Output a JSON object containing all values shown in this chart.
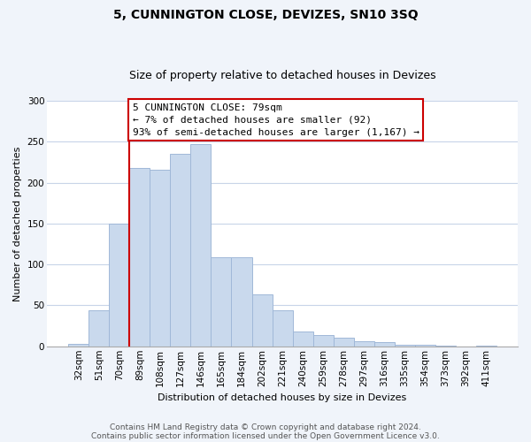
{
  "title": "5, CUNNINGTON CLOSE, DEVIZES, SN10 3SQ",
  "subtitle": "Size of property relative to detached houses in Devizes",
  "xlabel": "Distribution of detached houses by size in Devizes",
  "ylabel": "Number of detached properties",
  "bar_labels": [
    "32sqm",
    "51sqm",
    "70sqm",
    "89sqm",
    "108sqm",
    "127sqm",
    "146sqm",
    "165sqm",
    "184sqm",
    "202sqm",
    "221sqm",
    "240sqm",
    "259sqm",
    "278sqm",
    "297sqm",
    "316sqm",
    "335sqm",
    "354sqm",
    "373sqm",
    "392sqm",
    "411sqm"
  ],
  "bar_values": [
    3,
    44,
    150,
    218,
    216,
    235,
    247,
    109,
    109,
    63,
    44,
    18,
    14,
    11,
    6,
    5,
    2,
    2,
    1,
    0,
    1
  ],
  "bar_color": "#c9d9ed",
  "bar_edge_color": "#a0b8d8",
  "vline_x_index": 2,
  "vline_color": "#cc0000",
  "annotation_line1": "5 CUNNINGTON CLOSE: 79sqm",
  "annotation_line2": "← 7% of detached houses are smaller (92)",
  "annotation_line3": "93% of semi-detached houses are larger (1,167) →",
  "annotation_box_edge": "#cc0000",
  "ylim": [
    0,
    300
  ],
  "yticks": [
    0,
    50,
    100,
    150,
    200,
    250,
    300
  ],
  "footer_line1": "Contains HM Land Registry data © Crown copyright and database right 2024.",
  "footer_line2": "Contains public sector information licensed under the Open Government Licence v3.0.",
  "bg_color": "#f0f4fa",
  "plot_bg_color": "#ffffff",
  "grid_color": "#c8d4e8",
  "title_fontsize": 10,
  "subtitle_fontsize": 9,
  "axis_label_fontsize": 8,
  "tick_fontsize": 7.5,
  "footer_fontsize": 6.5
}
